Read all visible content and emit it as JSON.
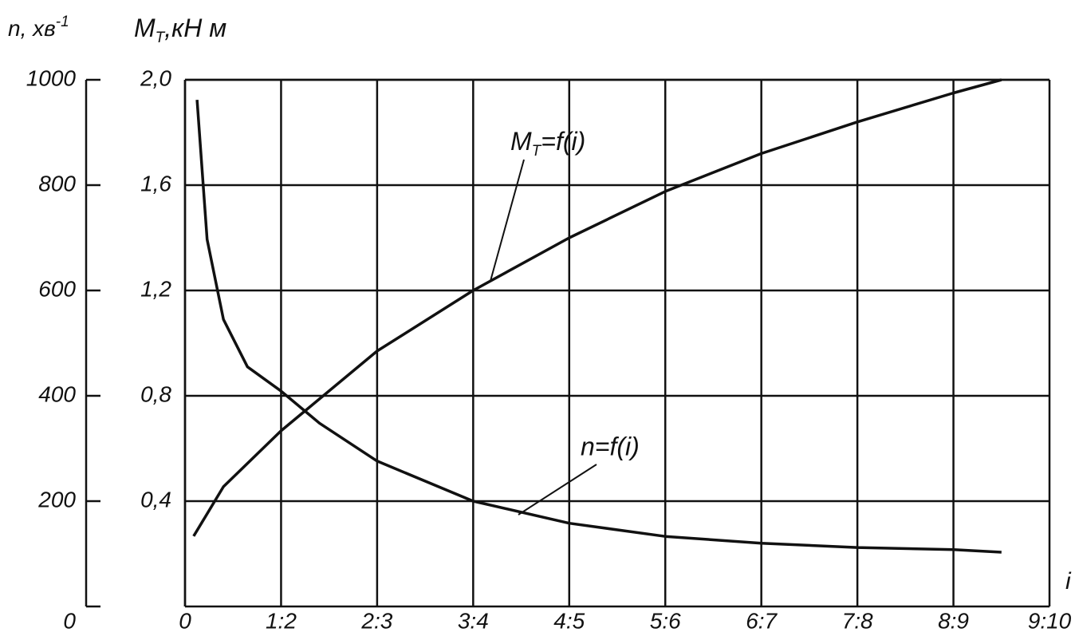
{
  "chart_data": {
    "type": "line",
    "y_label": {
      "text": "M",
      "subscript": "T",
      "suffix": ",кН м"
    },
    "y2_label": {
      "text": "n, хв",
      "superscript": "-1"
    },
    "x_label": "i",
    "xlim": [
      0,
      9
    ],
    "xticks": [
      0,
      {
        "value": 1,
        "label": "1:2"
      },
      {
        "value": 2,
        "label": "2:3"
      },
      {
        "value": 3,
        "label": "3:4"
      },
      {
        "value": 4,
        "label": "4:5"
      },
      {
        "value": 5,
        "label": "5:6"
      },
      {
        "value": 6,
        "label": "6:7"
      },
      {
        "value": 7,
        "label": "7:8"
      },
      {
        "value": 8,
        "label": "8:9"
      },
      {
        "value": 9,
        "label": "9:10"
      }
    ],
    "ylim": [
      0,
      2.0
    ],
    "yticks": [
      {
        "value": 0.4,
        "label": "0,4"
      },
      {
        "value": 0.8,
        "label": "0,8"
      },
      {
        "value": 1.2,
        "label": "1,2"
      },
      {
        "value": 1.6,
        "label": "1,6"
      },
      {
        "value": 2.0,
        "label": "2,0"
      }
    ],
    "y2lim": [
      0,
      1000
    ],
    "y2ticks": [
      0,
      200,
      400,
      600,
      800,
      1000
    ],
    "grid": true,
    "series": [
      {
        "name": {
          "text": "M",
          "subscript": "T",
          "suffix": "=f(i)"
        },
        "color": "#111111",
        "x": [
          0.09,
          0.4,
          1,
          2,
          3,
          4,
          5,
          6,
          7,
          8,
          8.5
        ],
        "values": [
          0.267,
          0.455,
          0.667,
          0.97,
          1.2,
          1.4,
          1.576,
          1.72,
          1.84,
          1.95,
          2.0
        ]
      },
      {
        "name": {
          "text": "n=f(i)"
        },
        "color": "#111111",
        "axis": "y2",
        "x": [
          0.125,
          0.23,
          0.4,
          0.65,
          1,
          1.4,
          2,
          3,
          4,
          5,
          6,
          7,
          8,
          8.5
        ],
        "values": [
          962,
          697,
          545,
          455,
          409,
          348,
          276,
          200,
          158,
          133,
          120,
          112,
          108,
          103
        ]
      }
    ]
  }
}
